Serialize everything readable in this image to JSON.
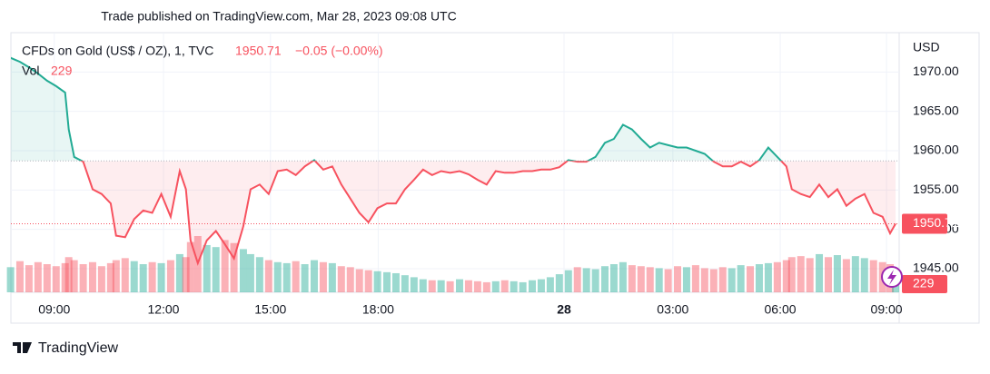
{
  "header": {
    "published": "Trade published on TradingView.com, Mar 28, 2023 09:08 UTC"
  },
  "footer": {
    "brand": "TradingView"
  },
  "chart_data": {
    "type": "line",
    "title": "CFDs on Gold (US$ / OZ), 1, TVC",
    "change": "−0.05 (−0.00%)",
    "volume_label": "Vol",
    "y_axis_label": "USD",
    "baseline": 1958.7,
    "up_color": "#22ab94",
    "down_color": "#f7525f",
    "grid": true,
    "xlim": [
      -1.2,
      23.37
    ],
    "ylim": [
      1942,
      1975
    ],
    "xticks": [
      {
        "value": 0,
        "label": "09:00"
      },
      {
        "value": 3.02,
        "label": "12:00"
      },
      {
        "value": 5.98,
        "label": "15:00"
      },
      {
        "value": 8.96,
        "label": "18:00"
      },
      {
        "value": 14.1,
        "label": "28"
      },
      {
        "value": 17.11,
        "label": "03:00"
      },
      {
        "value": 20.08,
        "label": "06:00"
      },
      {
        "value": 23.02,
        "label": "09:00"
      }
    ],
    "yticks": [
      {
        "value": 1945,
        "label": "1945.00"
      },
      {
        "value": 1950,
        "label": "1950.00"
      },
      {
        "value": 1955,
        "label": "1955.00"
      },
      {
        "value": 1960,
        "label": "1960.00"
      },
      {
        "value": 1965,
        "label": "1965.00"
      },
      {
        "value": 1970,
        "label": "1970.00"
      }
    ],
    "x": [
      -1.21,
      -0.95,
      -0.7,
      -0.45,
      -0.2,
      0.05,
      0.3,
      0.4,
      0.55,
      0.8,
      1.06,
      1.31,
      1.56,
      1.71,
      1.96,
      2.21,
      2.46,
      2.71,
      2.96,
      3.22,
      3.47,
      3.64,
      3.77,
      3.97,
      4.22,
      4.47,
      4.72,
      4.97,
      5.23,
      5.43,
      5.68,
      5.93,
      6.18,
      6.43,
      6.68,
      6.93,
      7.19,
      7.44,
      7.69,
      7.94,
      8.19,
      8.44,
      8.69,
      8.94,
      9.2,
      9.45,
      9.7,
      9.95,
      10.2,
      10.45,
      10.7,
      10.95,
      11.21,
      11.46,
      11.71,
      11.96,
      12.21,
      12.46,
      12.71,
      12.96,
      13.22,
      13.47,
      13.72,
      13.97,
      14.22,
      14.47,
      14.72,
      14.97,
      15.23,
      15.48,
      15.73,
      15.98,
      16.23,
      16.48,
      16.73,
      16.98,
      17.24,
      17.49,
      17.74,
      17.99,
      18.24,
      18.49,
      18.74,
      18.99,
      19.25,
      19.5,
      19.75,
      20.0,
      20.25,
      20.4,
      20.65,
      20.9,
      21.16,
      21.41,
      21.66,
      21.91,
      22.16,
      22.41,
      22.66,
      22.91,
      23.12,
      23.27
    ],
    "values": [
      1971.8,
      1971.3,
      1970.6,
      1969.8,
      1968.9,
      1968.2,
      1967.4,
      1962.7,
      1959.2,
      1958.6,
      1955.1,
      1954.5,
      1953.3,
      1949.2,
      1949.0,
      1951.3,
      1952.4,
      1952.1,
      1954.5,
      1951.6,
      1957.4,
      1955.1,
      1948.6,
      1945.7,
      1948.6,
      1949.8,
      1948.1,
      1946.3,
      1950.4,
      1955.1,
      1955.7,
      1954.5,
      1957.4,
      1957.6,
      1956.9,
      1958.0,
      1958.8,
      1957.6,
      1958.0,
      1955.7,
      1953.9,
      1952.1,
      1950.9,
      1952.7,
      1953.3,
      1953.3,
      1955.1,
      1956.3,
      1957.6,
      1956.9,
      1957.4,
      1957.2,
      1957.4,
      1957.0,
      1956.3,
      1955.7,
      1957.4,
      1957.2,
      1957.2,
      1957.4,
      1957.4,
      1957.6,
      1957.6,
      1957.9,
      1958.8,
      1958.6,
      1958.6,
      1959.2,
      1961.0,
      1961.5,
      1963.3,
      1962.7,
      1961.5,
      1960.4,
      1961.0,
      1960.7,
      1960.4,
      1960.4,
      1960.0,
      1959.6,
      1958.6,
      1958.0,
      1958.0,
      1958.6,
      1958.0,
      1958.8,
      1960.4,
      1959.2,
      1958.0,
      1955.1,
      1954.5,
      1954.1,
      1955.7,
      1954.1,
      1955.1,
      1953.0,
      1953.9,
      1954.5,
      1952.1,
      1951.6,
      1949.5,
      1950.71
    ],
    "volume": [
      500,
      620,
      540,
      600,
      560,
      520,
      580,
      700,
      640,
      560,
      600,
      520,
      580,
      640,
      680,
      620,
      560,
      600,
      580,
      640,
      760,
      700,
      1000,
      1120,
      940,
      900,
      1040,
      980,
      860,
      760,
      700,
      640,
      600,
      580,
      620,
      560,
      640,
      600,
      580,
      520,
      500,
      460,
      440,
      420,
      400,
      380,
      340,
      300,
      260,
      240,
      240,
      220,
      260,
      240,
      220,
      200,
      220,
      240,
      220,
      200,
      240,
      260,
      300,
      360,
      440,
      500,
      480,
      460,
      520,
      560,
      600,
      540,
      520,
      500,
      480,
      460,
      520,
      500,
      540,
      480,
      460,
      500,
      480,
      540,
      520,
      560,
      580,
      600,
      640,
      700,
      720,
      680,
      760,
      700,
      740,
      660,
      720,
      680,
      640,
      600,
      560,
      229
    ]
  }
}
